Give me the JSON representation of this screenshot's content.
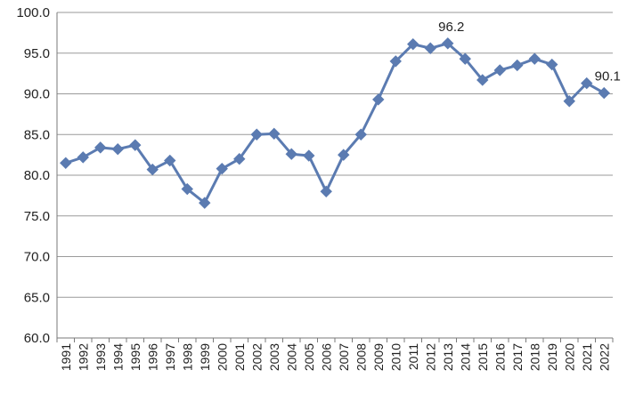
{
  "chart_data": {
    "type": "line",
    "title": "",
    "xlabel": "",
    "ylabel": "",
    "ylim": [
      60,
      100
    ],
    "y_ticks": [
      "60.0",
      "65.0",
      "70.0",
      "75.0",
      "80.0",
      "85.0",
      "90.0",
      "95.0",
      "100.0"
    ],
    "grid": "horizontal",
    "legend": "none",
    "line_color": "#5b7bb1",
    "x": [
      "1991",
      "1992",
      "1993",
      "1994",
      "1995",
      "1996",
      "1997",
      "1998",
      "1999",
      "2000",
      "2001",
      "2002",
      "2003",
      "2004",
      "2005",
      "2006",
      "2007",
      "2008",
      "2009",
      "2010",
      "2011",
      "2012",
      "2013",
      "2014",
      "2015",
      "2016",
      "2017",
      "2018",
      "2019",
      "2020",
      "2021",
      "2022"
    ],
    "series": [
      {
        "values": [
          81.5,
          82.2,
          83.4,
          83.2,
          83.7,
          80.7,
          81.8,
          78.3,
          76.6,
          80.8,
          82.0,
          85.0,
          85.1,
          82.6,
          82.4,
          78.0,
          82.5,
          85.0,
          89.3,
          94.0,
          96.1,
          95.6,
          96.2,
          94.3,
          91.7,
          92.9,
          93.5,
          94.3,
          93.6,
          89.1,
          91.3,
          90.1
        ]
      }
    ],
    "annotations": [
      {
        "x": "2013",
        "text": "96.2"
      },
      {
        "x": "2022",
        "text": "90.1"
      }
    ]
  }
}
